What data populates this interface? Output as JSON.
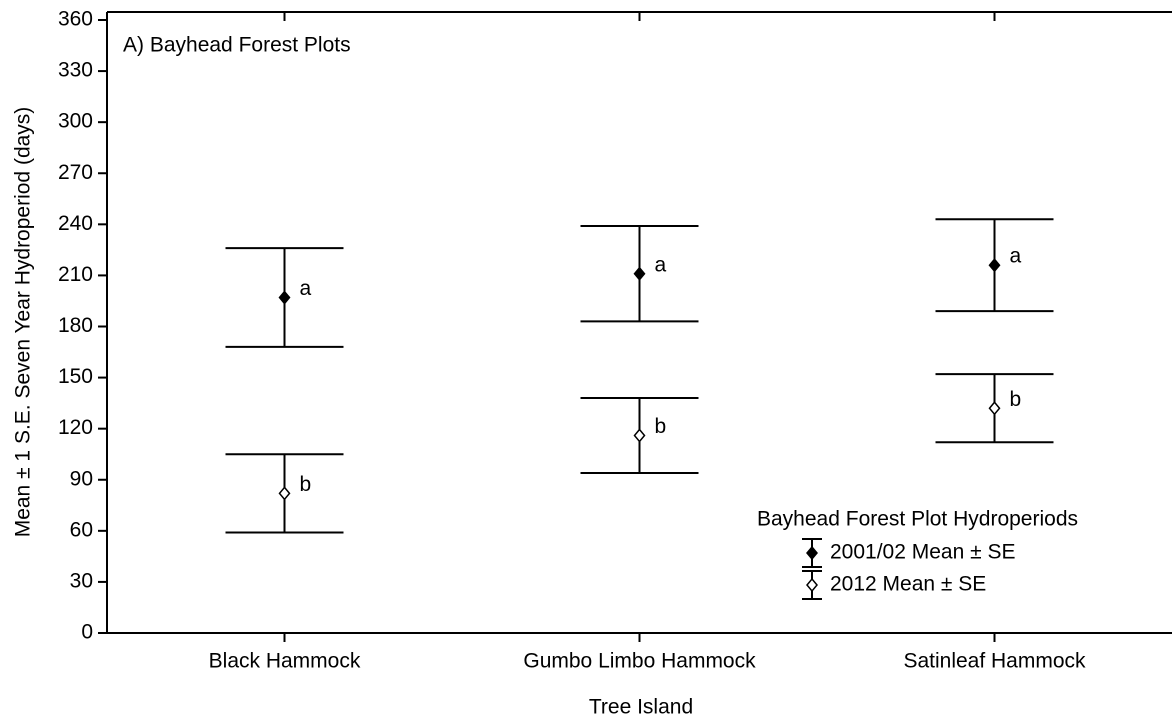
{
  "chart_data": {
    "type": "errorbar",
    "title": "A) Bayhead Forest Plots",
    "x_label": "Tree Island",
    "y_label": "Mean ± 1 S.E. Seven Year Hydroperiod (days)",
    "categories": [
      "Black Hammock",
      "Gumbo Limbo Hammock",
      "Satinleaf Hammock"
    ],
    "series": [
      {
        "name": "2001/02 Mean ± SE",
        "color": "#000000",
        "values": [
          197,
          211,
          216
        ],
        "errors": [
          29,
          28,
          27
        ],
        "letters": [
          "a",
          "a",
          "a"
        ]
      },
      {
        "name": "2012 Mean ± SE",
        "color": "#ffffff",
        "values": [
          82,
          116,
          132
        ],
        "errors": [
          23,
          22,
          20
        ],
        "letters": [
          "b",
          "b",
          "b"
        ]
      }
    ],
    "legend_title": "Bayhead Forest Plot Hydroperiods",
    "legend_position": "lower right",
    "ylim": [
      0,
      360
    ],
    "yticks": [
      0,
      30,
      60,
      90,
      120,
      150,
      180,
      210,
      240,
      270,
      300,
      330,
      360
    ],
    "grid": false
  }
}
